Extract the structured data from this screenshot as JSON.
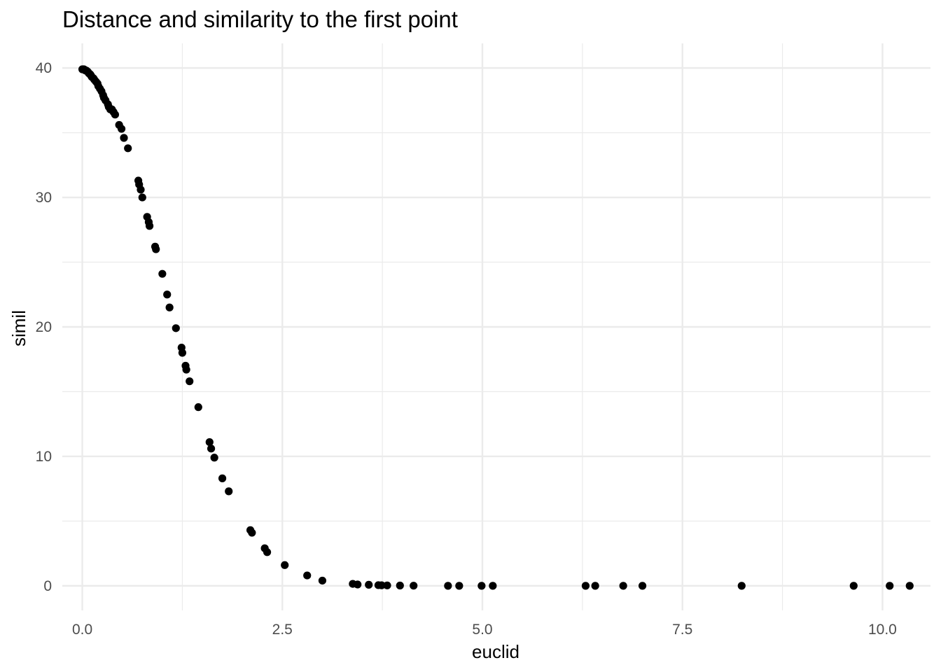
{
  "chart_data": {
    "type": "scatter",
    "title": "Distance and similarity to the first point",
    "xlabel": "euclid",
    "ylabel": "simil",
    "xlim": [
      -0.25,
      10.6
    ],
    "ylim": [
      -1.9,
      41.9
    ],
    "x_ticks": [
      0.0,
      2.5,
      5.0,
      7.5,
      10.0
    ],
    "x_tick_labels": [
      "0.0",
      "2.5",
      "5.0",
      "7.5",
      "10.0"
    ],
    "x_minor_ticks": [
      1.25,
      3.75,
      6.25,
      8.75
    ],
    "y_ticks": [
      0,
      10,
      20,
      30,
      40
    ],
    "y_tick_labels": [
      "0",
      "10",
      "20",
      "30",
      "40"
    ],
    "y_minor_ticks": [
      5,
      15,
      25,
      35
    ],
    "grid": true,
    "legend": "none",
    "point_color": "#000000",
    "series": [
      {
        "x": [
          0.0,
          0.01,
          0.02,
          0.03,
          0.04,
          0.05,
          0.06,
          0.07,
          0.08,
          0.09,
          0.1,
          0.11,
          0.12,
          0.14,
          0.15,
          0.17,
          0.19,
          0.2,
          0.22,
          0.24,
          0.26,
          0.27,
          0.29,
          0.32,
          0.33,
          0.35,
          0.37,
          0.39,
          0.41,
          0.46,
          0.49,
          0.52,
          0.57,
          0.7,
          0.71,
          0.73,
          0.75,
          0.81,
          0.83,
          0.84,
          0.91,
          0.92,
          1.0,
          1.06,
          1.09,
          1.17,
          1.24,
          1.25,
          1.29,
          1.3,
          1.34,
          1.45,
          1.59,
          1.61,
          1.65,
          1.75,
          1.83,
          2.1,
          2.12,
          2.28,
          2.31,
          2.53,
          2.81,
          3.0,
          3.38,
          3.44,
          3.58,
          3.7,
          3.74,
          3.81,
          3.97,
          4.14,
          4.57,
          4.71,
          4.99,
          5.13,
          6.29,
          6.41,
          6.76,
          7.0,
          8.24,
          9.64,
          10.09,
          10.34
        ],
        "y": [
          39.9,
          39.9,
          39.9,
          39.85,
          39.8,
          39.8,
          39.75,
          39.7,
          39.6,
          39.55,
          39.5,
          39.4,
          39.3,
          39.2,
          39.1,
          38.95,
          38.8,
          38.6,
          38.4,
          38.2,
          37.9,
          37.7,
          37.5,
          37.2,
          37.0,
          36.8,
          36.8,
          36.6,
          36.4,
          35.6,
          35.3,
          34.6,
          33.8,
          31.3,
          31.0,
          30.6,
          30.0,
          28.5,
          28.1,
          27.8,
          26.2,
          26.0,
          24.1,
          22.5,
          21.5,
          19.9,
          18.4,
          18.0,
          17.0,
          16.7,
          15.8,
          13.8,
          11.1,
          10.6,
          9.9,
          8.3,
          7.3,
          4.3,
          4.1,
          2.9,
          2.6,
          1.6,
          0.8,
          0.4,
          0.15,
          0.1,
          0.08,
          0.05,
          0.04,
          0.03,
          0.02,
          0.01,
          0.0,
          0.0,
          0.0,
          0.0,
          0.0,
          0.0,
          0.0,
          0.0,
          0.0,
          0.0,
          0.0,
          0.0
        ]
      }
    ]
  }
}
